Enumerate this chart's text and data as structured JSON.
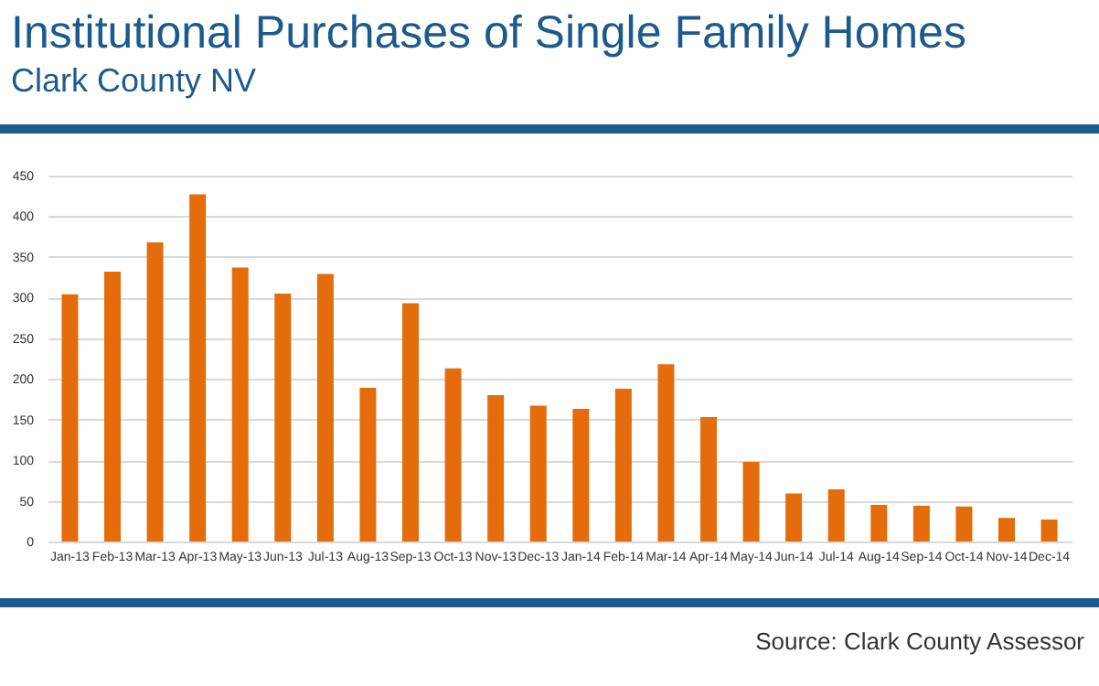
{
  "chart_data": {
    "type": "bar",
    "title": "Institutional Purchases of Single Family Homes",
    "subtitle": "Clark County NV",
    "categories": [
      "Jan-13",
      "Feb-13",
      "Mar-13",
      "Apr-13",
      "May-13",
      "Jun-13",
      "Jul-13",
      "Aug-13",
      "Sep-13",
      "Oct-13",
      "Nov-13",
      "Dec-13",
      "Jan-14",
      "Feb-14",
      "Mar-14",
      "Apr-14",
      "May-14",
      "Jun-14",
      "Jul-14",
      "Aug-14",
      "Sep-14",
      "Oct-14",
      "Nov-14",
      "Dec-14"
    ],
    "values": [
      304,
      332,
      368,
      427,
      337,
      305,
      329,
      189,
      293,
      213,
      180,
      167,
      163,
      188,
      218,
      153,
      98,
      59,
      64,
      45,
      44,
      43,
      29,
      27
    ],
    "color": "#e46c0a",
    "ylim": [
      0,
      450
    ],
    "yticks": [
      0,
      50,
      100,
      150,
      200,
      250,
      300,
      350,
      400,
      450
    ],
    "grid": "y",
    "annotations": [
      "Source: Clark County Assessor"
    ]
  }
}
